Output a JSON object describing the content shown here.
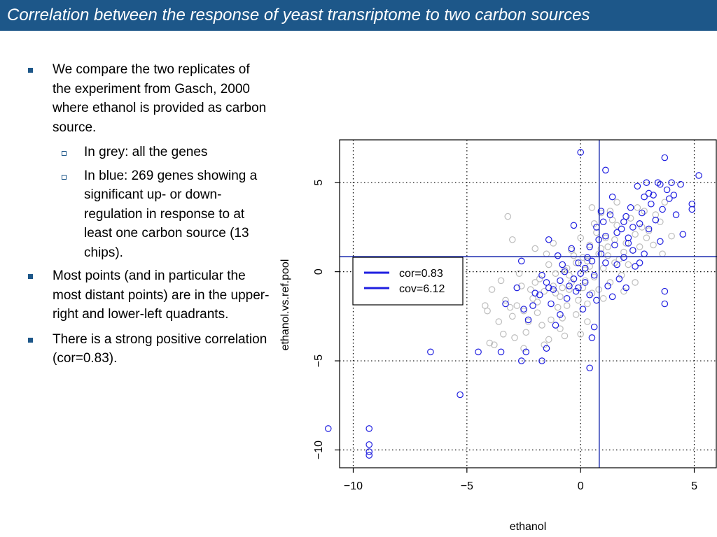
{
  "slide": {
    "title": "Correlation between the response of yeast transriptome to two carbon sources",
    "bullets": [
      {
        "text": "We compare the two replicates of the experiment from Gasch, 2000 where ethanol is provided as carbon source.",
        "subs": [
          "In grey: all the genes",
          "In blue: 269 genes showing a significant up- or down-regulation in response to at least one carbon source (13 chips)."
        ]
      },
      {
        "text": "Most points (and in particular the most distant points) are in the upper-right and lower-left quadrants."
      },
      {
        "text": "There is a strong positive correlation (cor=0.83)."
      }
    ]
  },
  "colors": {
    "title_bar": "#1d5789",
    "all_genes": "#bdbdbd",
    "significant_genes": "#1f1fe0",
    "mean_lines": "#1f2fb0"
  },
  "chart_data": {
    "type": "scatter",
    "title": "",
    "xlabel": "ethanol",
    "ylabel": "ethanol.vs.ref.pool",
    "xlim": [
      -10.6,
      6.0
    ],
    "ylim": [
      -11.0,
      7.4
    ],
    "xticks": [
      -10,
      -5,
      0,
      5
    ],
    "yticks": [
      -10,
      -5,
      0,
      5
    ],
    "grid": "dotted",
    "mean_lines": {
      "x": 0.82,
      "y": 0.85
    },
    "legend": {
      "position": "center-left",
      "entries": [
        "cor=0.83",
        "cov=6.12"
      ]
    },
    "series": [
      {
        "color_role": "grey",
        "points": [
          [
            -1.2,
            -0.8
          ],
          [
            -0.5,
            -0.2
          ],
          [
            0.3,
            0.6
          ],
          [
            0.8,
            1.0
          ],
          [
            -0.9,
            -1.4
          ],
          [
            1.2,
            0.9
          ],
          [
            -0.2,
            0.5
          ],
          [
            0.6,
            -0.3
          ],
          [
            -1.6,
            -1.1
          ],
          [
            1.5,
            1.8
          ],
          [
            -0.7,
            0.1
          ],
          [
            0.1,
            -0.9
          ],
          [
            2.0,
            1.6
          ],
          [
            -2.1,
            -1.5
          ],
          [
            0.9,
            1.3
          ],
          [
            -0.4,
            -0.6
          ],
          [
            1.7,
            0.7
          ],
          [
            -1.0,
            -2.0
          ],
          [
            0.4,
            1.5
          ],
          [
            -1.8,
            -0.4
          ],
          [
            2.4,
            2.1
          ],
          [
            -2.5,
            -2.2
          ],
          [
            1.0,
            0.2
          ],
          [
            -0.1,
            -1.6
          ],
          [
            0.7,
            2.2
          ],
          [
            -1.4,
            0.4
          ],
          [
            1.9,
            1.1
          ],
          [
            -0.6,
            -1.9
          ],
          [
            2.7,
            2.5
          ],
          [
            -2.8,
            -1.9
          ],
          [
            0.2,
            0.1
          ],
          [
            -0.3,
            0.9
          ],
          [
            1.3,
            -0.6
          ],
          [
            -1.1,
            -0.1
          ],
          [
            0.5,
            -1.2
          ],
          [
            2.2,
            3.0
          ],
          [
            -2.3,
            -2.8
          ],
          [
            1.6,
            2.6
          ],
          [
            -0.8,
            -2.6
          ],
          [
            3.0,
            2.3
          ],
          [
            -3.0,
            -2.5
          ],
          [
            0.0,
            1.9
          ],
          [
            -1.9,
            -1.7
          ],
          [
            1.1,
            1.9
          ],
          [
            -0.5,
            -1.0
          ],
          [
            2.6,
            1.4
          ],
          [
            -2.6,
            -0.8
          ],
          [
            0.8,
            -1.0
          ],
          [
            -1.3,
            -2.7
          ],
          [
            1.4,
            2.9
          ],
          [
            -3.3,
            -1.6
          ],
          [
            3.3,
            3.2
          ],
          [
            -0.2,
            -2.4
          ],
          [
            0.6,
            2.7
          ],
          [
            -1.7,
            -3.0
          ],
          [
            2.9,
            1.9
          ],
          [
            -2.0,
            -0.6
          ],
          [
            1.8,
            -0.2
          ],
          [
            -0.9,
            -3.2
          ],
          [
            0.3,
            -1.8
          ],
          [
            2.1,
            0.4
          ],
          [
            -1.5,
            1.0
          ],
          [
            0.9,
            3.3
          ],
          [
            -2.4,
            -3.4
          ],
          [
            3.5,
            2.8
          ],
          [
            -3.6,
            -2.8
          ],
          [
            0.4,
            0.3
          ],
          [
            -0.6,
            0.2
          ],
          [
            1.2,
            1.4
          ],
          [
            -1.1,
            -1.2
          ],
          [
            0.1,
            0.8
          ],
          [
            -0.3,
            -0.4
          ],
          [
            1.5,
            0.5
          ],
          [
            -0.8,
            -0.9
          ],
          [
            2.3,
            1.2
          ],
          [
            -1.9,
            -2.3
          ],
          [
            0.2,
            -0.5
          ],
          [
            -0.4,
            1.2
          ],
          [
            1.0,
            -1.5
          ],
          [
            -2.2,
            -1.0
          ],
          [
            -3.9,
            -1.0
          ],
          [
            -3.4,
            -3.5
          ],
          [
            -3.8,
            -4.1
          ],
          [
            -2.9,
            -3.7
          ],
          [
            3.7,
            3.9
          ],
          [
            2.5,
            3.6
          ],
          [
            -1.6,
            -4.1
          ],
          [
            0.0,
            -3.5
          ],
          [
            1.3,
            3.4
          ],
          [
            -2.7,
            -0.1
          ],
          [
            3.2,
            1.5
          ],
          [
            -4.1,
            -2.2
          ],
          [
            4.0,
            2.0
          ],
          [
            -1.2,
            1.6
          ],
          [
            1.9,
            -1.1
          ],
          [
            -0.7,
            -3.6
          ],
          [
            0.5,
            3.6
          ],
          [
            -3.1,
            -2.0
          ],
          [
            2.8,
            3.4
          ],
          [
            -2.0,
            1.3
          ],
          [
            2.4,
            -0.6
          ],
          [
            -3.5,
            -0.5
          ],
          [
            1.6,
            3.9
          ],
          [
            -2.5,
            -4.3
          ],
          [
            0.3,
            -2.8
          ],
          [
            -1.4,
            -3.8
          ],
          [
            3.6,
            1.0
          ],
          [
            -4.2,
            -1.9
          ],
          [
            -3.2,
            3.1
          ],
          [
            -3.0,
            1.8
          ],
          [
            -4.0,
            -4.0
          ]
        ]
      },
      {
        "color_role": "blue",
        "points": [
          [
            -11.1,
            -8.8
          ],
          [
            -9.3,
            -8.8
          ],
          [
            -9.3,
            -9.7
          ],
          [
            -9.3,
            -10.1
          ],
          [
            -9.3,
            -10.3
          ],
          [
            -6.6,
            -4.5
          ],
          [
            -5.3,
            -6.9
          ],
          [
            -4.5,
            -4.5
          ],
          [
            -3.5,
            -4.5
          ],
          [
            -2.6,
            -5.0
          ],
          [
            -2.4,
            -4.5
          ],
          [
            -1.5,
            -4.3
          ],
          [
            -1.7,
            -5.0
          ],
          [
            0.4,
            -5.4
          ],
          [
            0.5,
            -3.7
          ],
          [
            0.0,
            6.7
          ],
          [
            1.1,
            5.7
          ],
          [
            3.7,
            6.4
          ],
          [
            5.2,
            5.4
          ],
          [
            4.0,
            5.0
          ],
          [
            3.8,
            4.6
          ],
          [
            4.1,
            4.3
          ],
          [
            3.4,
            5.0
          ],
          [
            3.0,
            4.4
          ],
          [
            3.6,
            3.5
          ],
          [
            4.2,
            3.2
          ],
          [
            4.9,
            3.8
          ],
          [
            4.4,
            4.9
          ],
          [
            3.9,
            4.1
          ],
          [
            2.5,
            4.8
          ],
          [
            2.8,
            4.2
          ],
          [
            3.1,
            3.8
          ],
          [
            2.2,
            3.6
          ],
          [
            2.0,
            3.1
          ],
          [
            3.3,
            2.9
          ],
          [
            2.6,
            2.7
          ],
          [
            1.8,
            2.4
          ],
          [
            2.1,
            1.9
          ],
          [
            1.6,
            2.2
          ],
          [
            3.0,
            2.4
          ],
          [
            1.3,
            3.2
          ],
          [
            1.0,
            2.8
          ],
          [
            0.7,
            2.5
          ],
          [
            1.5,
            1.5
          ],
          [
            2.3,
            1.2
          ],
          [
            2.8,
            1.0
          ],
          [
            1.9,
            0.8
          ],
          [
            1.1,
            0.5
          ],
          [
            0.9,
            1.0
          ],
          [
            0.5,
            0.6
          ],
          [
            0.2,
            0.2
          ],
          [
            0.0,
            -0.1
          ],
          [
            -0.3,
            -0.4
          ],
          [
            0.3,
            0.8
          ],
          [
            -0.1,
            0.5
          ],
          [
            0.6,
            -0.2
          ],
          [
            -0.5,
            -0.8
          ],
          [
            -0.9,
            -0.5
          ],
          [
            -1.2,
            -1.0
          ],
          [
            -0.8,
            0.4
          ],
          [
            -1.5,
            -0.6
          ],
          [
            -1.8,
            -1.3
          ],
          [
            -2.1,
            -1.9
          ],
          [
            -2.5,
            -2.1
          ],
          [
            -1.3,
            -1.8
          ],
          [
            -0.6,
            -1.5
          ],
          [
            -0.2,
            -1.1
          ],
          [
            0.4,
            -1.3
          ],
          [
            1.2,
            -0.8
          ],
          [
            1.7,
            -0.4
          ],
          [
            2.4,
            0.3
          ],
          [
            -1.0,
            0.9
          ],
          [
            -0.4,
            1.3
          ],
          [
            0.8,
            1.8
          ],
          [
            -1.7,
            -0.2
          ],
          [
            -2.3,
            -2.7
          ],
          [
            -3.3,
            -1.8
          ],
          [
            -2.8,
            -0.9
          ],
          [
            0.1,
            -2.1
          ],
          [
            -0.9,
            -2.4
          ],
          [
            1.4,
            -1.4
          ],
          [
            2.0,
            -0.9
          ],
          [
            3.7,
            -1.1
          ],
          [
            3.7,
            -1.8
          ],
          [
            -1.1,
            -3.0
          ],
          [
            0.6,
            -3.1
          ],
          [
            -2.6,
            0.6
          ],
          [
            -1.4,
            1.8
          ],
          [
            2.6,
            0.5
          ],
          [
            3.5,
            1.7
          ],
          [
            4.5,
            2.1
          ],
          [
            4.9,
            3.5
          ],
          [
            -0.3,
            2.6
          ],
          [
            0.9,
            3.4
          ],
          [
            1.4,
            4.2
          ],
          [
            2.9,
            5.0
          ],
          [
            3.2,
            4.3
          ],
          [
            3.5,
            4.9
          ],
          [
            2.7,
            3.3
          ],
          [
            2.3,
            2.5
          ],
          [
            1.9,
            2.8
          ],
          [
            0.4,
            1.4
          ],
          [
            -0.7,
            0.0
          ],
          [
            -1.4,
            -0.9
          ],
          [
            -2.0,
            -1.2
          ],
          [
            0.7,
            -1.6
          ],
          [
            1.6,
            0.4
          ],
          [
            2.1,
            1.6
          ],
          [
            1.1,
            2.0
          ],
          [
            0.2,
            -0.6
          ],
          [
            -0.1,
            -0.9
          ]
        ]
      }
    ]
  }
}
